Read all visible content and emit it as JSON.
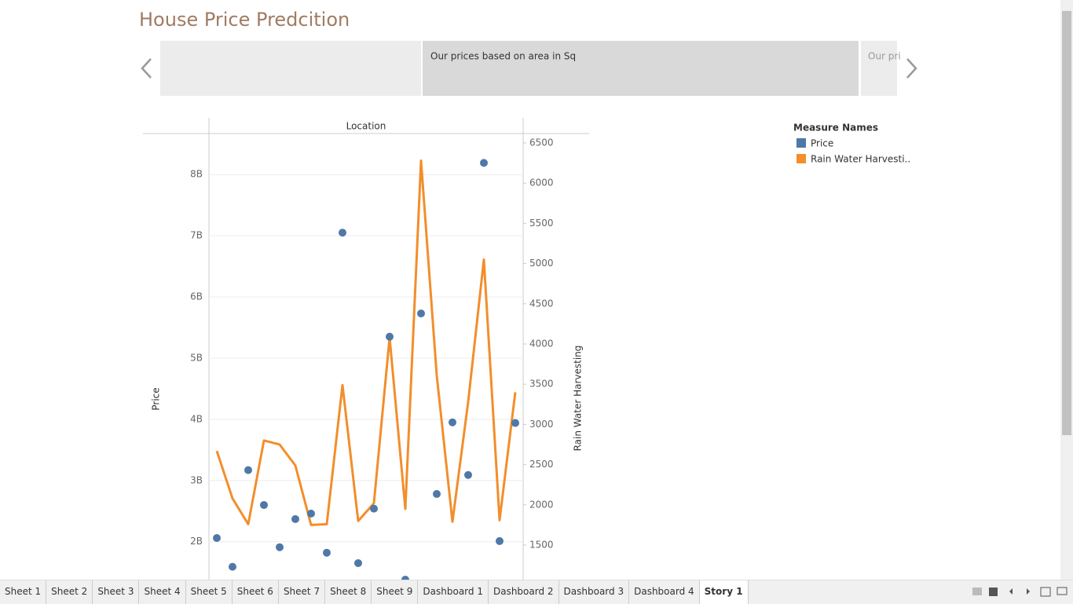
{
  "header": {
    "title": "House Price Predcition"
  },
  "story_points": [
    "Our prices based on area in Sq",
    "Our pri"
  ],
  "chart_data": {
    "type": "combo",
    "header": "Location",
    "categories": [
      null,
      null,
      null,
      null,
      null,
      null,
      null,
      null,
      null,
      null,
      null,
      null,
      null,
      null,
      null,
      null,
      null,
      null,
      null,
      null
    ],
    "ylabel": "Price",
    "y2label": "Rain Water Harvesting",
    "ylim": [
      1380000000,
      8670000000
    ],
    "yticks": [
      {
        "value": 2000000000,
        "label": "2B"
      },
      {
        "value": 3000000000,
        "label": "3B"
      },
      {
        "value": 4000000000,
        "label": "4B"
      },
      {
        "value": 5000000000,
        "label": "5B"
      },
      {
        "value": 6000000000,
        "label": "6B"
      },
      {
        "value": 7000000000,
        "label": "7B"
      },
      {
        "value": 8000000000,
        "label": "8B"
      }
    ],
    "y2lim": [
      1070,
      6617
    ],
    "y2ticks": [
      1500,
      2000,
      2500,
      3000,
      3500,
      4000,
      4500,
      5000,
      5500,
      6000,
      6500
    ],
    "grid": true,
    "legend_title": "Measure Names",
    "legend": "top-right",
    "series": [
      {
        "name": "Price",
        "color": "#4e79a7",
        "type": "scatter",
        "values": [
          2060000000,
          1590000000,
          3170000000,
          2600000000,
          1910000000,
          2370000000,
          2460000000,
          1820000000,
          7050000000,
          1650000000,
          2540000000,
          5350000000,
          1380000000,
          5730000000,
          2780000000,
          3950000000,
          3090000000,
          8190000000,
          2010000000,
          3940000000
        ]
      },
      {
        "name": "Rain Water Harvesti..",
        "color": "#f28e2b",
        "type": "line",
        "axis": "y2",
        "values": [
          2670,
          2080,
          1760,
          2800,
          2750,
          2490,
          1750,
          1760,
          3490,
          1800,
          2020,
          4080,
          1950,
          6280,
          3610,
          1790,
          3280,
          5050,
          1810,
          3400
        ]
      }
    ]
  },
  "tabs": [
    "Sheet 1",
    "Sheet 2",
    "Sheet 3",
    "Sheet 4",
    "Sheet 5",
    "Sheet 6",
    "Sheet 7",
    "Sheet 8",
    "Sheet 9",
    "Dashboard 1",
    "Dashboard 2",
    "Dashboard 3",
    "Dashboard 4",
    "Story 1"
  ],
  "active_tab": "Story 1"
}
